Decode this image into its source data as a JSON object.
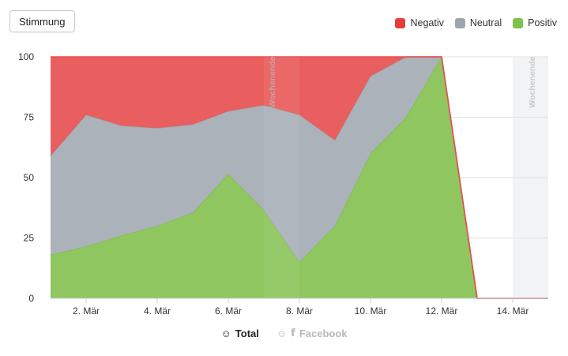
{
  "button": {
    "label": "Stimmung"
  },
  "legend": [
    {
      "label": "Negativ",
      "color": "#e94a4a"
    },
    {
      "label": "Neutral",
      "color": "#9ea5ae"
    },
    {
      "label": "Positiv",
      "color": "#7dc24b"
    }
  ],
  "tabs": [
    {
      "label": "Total",
      "icon": "smiley-icon",
      "active": true
    },
    {
      "label": "Facebook",
      "icon": "facebook-icon",
      "active": false
    }
  ],
  "chart_data": {
    "type": "area",
    "stacked": true,
    "x": [
      1,
      2,
      3,
      4,
      5,
      6,
      7,
      8,
      9,
      10,
      11,
      12,
      13,
      14,
      15
    ],
    "x_ticks": [
      {
        "x": 2,
        "label": "2. Mär"
      },
      {
        "x": 4,
        "label": "4. Mär"
      },
      {
        "x": 6,
        "label": "6. Mär"
      },
      {
        "x": 8,
        "label": "8. Mär"
      },
      {
        "x": 10,
        "label": "10. Mär"
      },
      {
        "x": 12,
        "label": "12. Mär"
      },
      {
        "x": 14,
        "label": "14. Mär"
      }
    ],
    "ylim": [
      0,
      100
    ],
    "y_ticks": [
      0,
      25,
      50,
      75,
      100
    ],
    "grid": true,
    "legend_position": "top-right",
    "series": [
      {
        "name": "Positiv",
        "color": "#7dc24b",
        "values": [
          18,
          21.5,
          26,
          30,
          35.5,
          51.5,
          36.5,
          15,
          30,
          60,
          75,
          100,
          0,
          0,
          0
        ]
      },
      {
        "name": "Neutral",
        "color": "#9ea5ae",
        "values": [
          41,
          54.5,
          45.5,
          40.5,
          36.5,
          26,
          43.5,
          61,
          35.5,
          32,
          25,
          0,
          0,
          0,
          0
        ]
      },
      {
        "name": "Negativ",
        "color": "#e94a4a",
        "values": [
          41,
          24,
          28.5,
          29.5,
          28,
          22.5,
          20,
          24,
          34.5,
          8,
          0,
          0,
          0,
          0,
          0
        ]
      }
    ],
    "bands": [
      {
        "from": 7,
        "to": 8,
        "label": "Wochenende"
      },
      {
        "from": 14,
        "to": 15,
        "label": "Wochenende"
      }
    ]
  }
}
